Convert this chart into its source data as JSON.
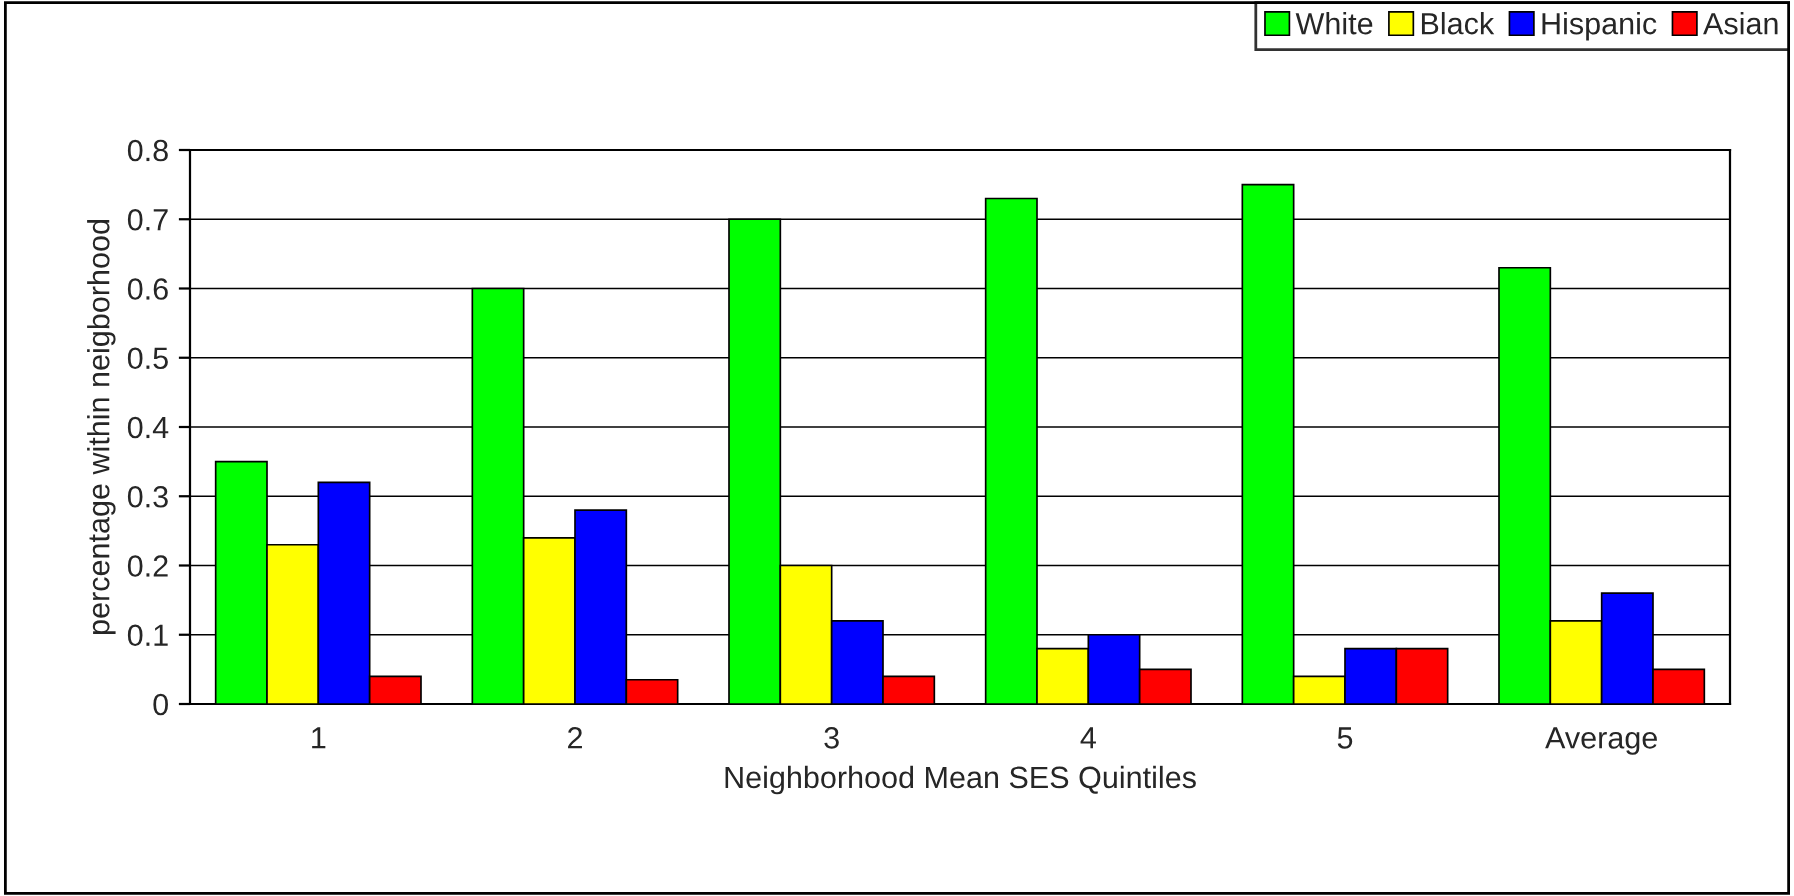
{
  "chart_data": {
    "type": "bar",
    "xlabel": "Neighborhood Mean SES Quintiles",
    "ylabel": "percentage within neigborhood",
    "categories": [
      "1",
      "2",
      "3",
      "4",
      "5",
      "Average"
    ],
    "series": [
      {
        "name": "White",
        "color": "#00ff00",
        "values": [
          0.35,
          0.6,
          0.7,
          0.73,
          0.75,
          0.63
        ]
      },
      {
        "name": "Black",
        "color": "#ffff00",
        "values": [
          0.23,
          0.24,
          0.2,
          0.08,
          0.04,
          0.12
        ]
      },
      {
        "name": "Hispanic",
        "color": "#0000ff",
        "values": [
          0.32,
          0.28,
          0.12,
          0.1,
          0.08,
          0.16
        ]
      },
      {
        "name": "Asian",
        "color": "#ff0000",
        "values": [
          0.04,
          0.035,
          0.04,
          0.05,
          0.08,
          0.05
        ]
      }
    ],
    "ylim": [
      0,
      0.8
    ],
    "yticks": [
      {
        "value": 0,
        "label": "0"
      },
      0.1,
      0.2,
      0.3,
      0.4,
      0.5,
      0.6,
      0.7,
      0.8
    ],
    "grid": "y",
    "legend": "top right"
  }
}
